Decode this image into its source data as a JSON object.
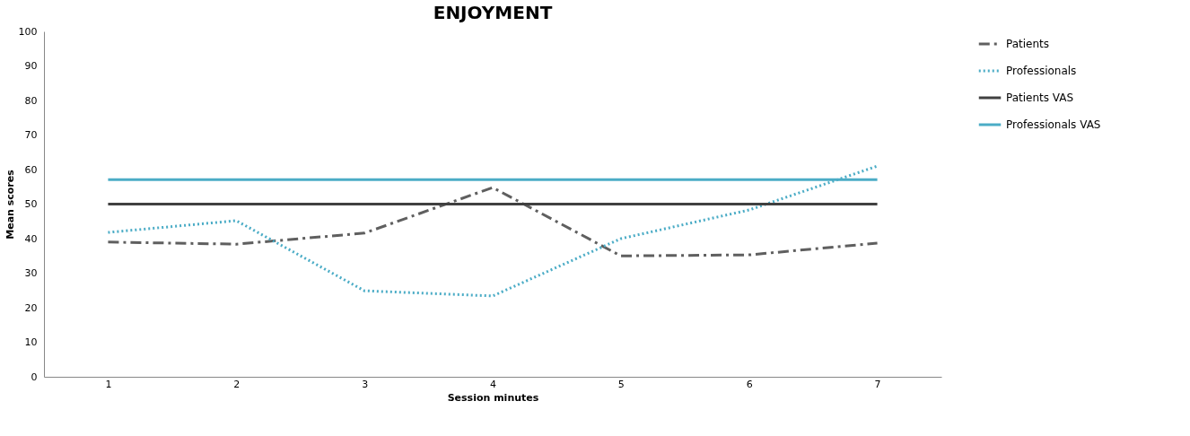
{
  "chart_data": {
    "type": "line",
    "title": "ENJOYMENT",
    "xlabel": "Session minutes",
    "ylabel": "Mean scores",
    "categories": [
      "1",
      "2",
      "3",
      "4",
      "5",
      "6",
      "7"
    ],
    "series": [
      {
        "name": "Patients",
        "color": "#5f5f5f",
        "line_style": "dashed",
        "values": [
          39,
          38.4,
          41.6,
          54.8,
          35,
          35.3,
          38.7
        ]
      },
      {
        "name": "Professionals",
        "color": "#4bacc6",
        "line_style": "dotted",
        "values": [
          41.8,
          45.2,
          24.9,
          23.4,
          40,
          48.3,
          61
        ]
      },
      {
        "name": "Patients VAS",
        "color": "#404040",
        "line_style": "solid",
        "values": [
          50,
          50,
          50,
          50,
          50,
          50,
          50
        ]
      },
      {
        "name": "Professionals VAS",
        "color": "#4bacc6",
        "line_style": "solid",
        "values": [
          57.1,
          57.1,
          57.1,
          57.1,
          57.1,
          57.1,
          57.1
        ]
      }
    ],
    "ylim": [
      0,
      100
    ],
    "yticks": [
      0,
      10,
      20,
      30,
      40,
      50,
      60,
      70,
      80,
      90,
      100
    ],
    "grid": false,
    "legend": "right",
    "marker": "none"
  }
}
